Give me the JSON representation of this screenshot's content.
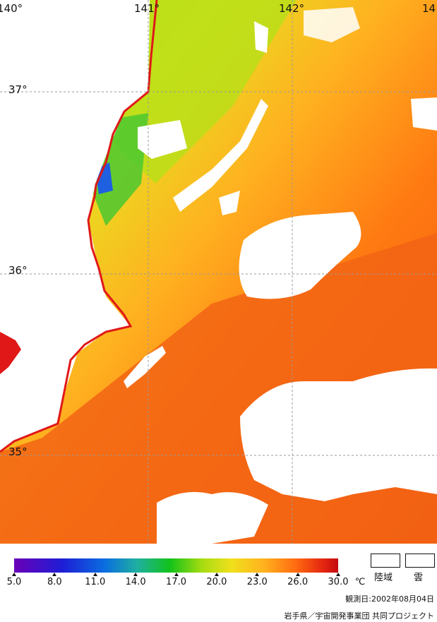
{
  "map": {
    "longitude_labels": [
      "140°",
      "141°",
      "142°",
      "14"
    ],
    "latitude_labels": [
      "37°",
      "36°",
      "35°"
    ]
  },
  "legend": {
    "ticks": [
      "5.0",
      "8.0",
      "11.0",
      "14.0",
      "17.0",
      "20.0",
      "23.0",
      "26.0",
      "30.0"
    ],
    "unit": "℃",
    "land_label": "陸域",
    "cloud_label": "雲"
  },
  "footer": {
    "observation_date": "観測日:2002年08月04日",
    "credit": "岩手県／宇宙開発事業団 共同プロジェクト"
  }
}
